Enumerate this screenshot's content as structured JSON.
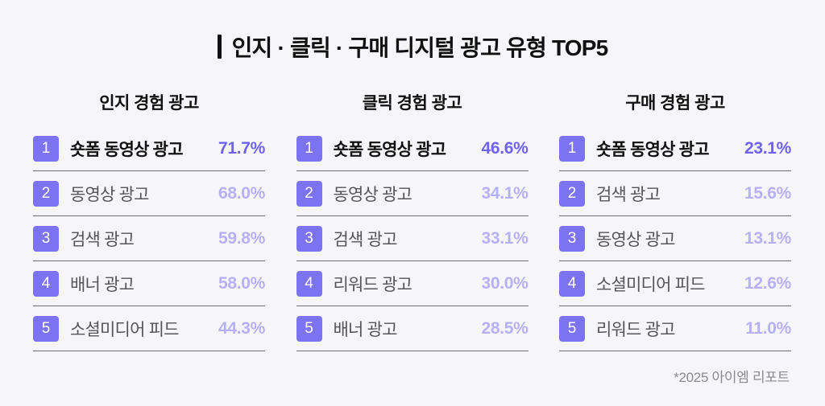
{
  "title": {
    "text": "인지 · 클릭 · 구매 디지털 광고 유형 TOP5"
  },
  "footer": {
    "source": "*2025 아이엠 리포트"
  },
  "colors": {
    "background": "#F6F6F8",
    "badge": "#7C73F2",
    "value_rank1": "#6F62EF",
    "value_other": "#B6B0F6",
    "label_rank1": "#111111",
    "label_other": "#555558",
    "divider": "#6E6E72",
    "source_text": "#8A8A8E"
  },
  "chart_data": {
    "type": "table",
    "title": "인지 · 클릭 · 구매 디지털 광고 유형 TOP5",
    "unit": "%",
    "groups": [
      {
        "header": "인지 경험 광고",
        "items": [
          {
            "rank": "1",
            "label": "숏폼 동영상 광고",
            "value": 71.7,
            "value_label": "71.7%"
          },
          {
            "rank": "2",
            "label": "동영상 광고",
            "value": 68.0,
            "value_label": "68.0%"
          },
          {
            "rank": "3",
            "label": "검색 광고",
            "value": 59.8,
            "value_label": "59.8%"
          },
          {
            "rank": "4",
            "label": "배너 광고",
            "value": 58.0,
            "value_label": "58.0%"
          },
          {
            "rank": "5",
            "label": "소셜미디어 피드",
            "value": 44.3,
            "value_label": "44.3%"
          }
        ]
      },
      {
        "header": "클릭 경험 광고",
        "items": [
          {
            "rank": "1",
            "label": "숏폼 동영상 광고",
            "value": 46.6,
            "value_label": "46.6%"
          },
          {
            "rank": "2",
            "label": "동영상 광고",
            "value": 34.1,
            "value_label": "34.1%"
          },
          {
            "rank": "3",
            "label": "검색 광고",
            "value": 33.1,
            "value_label": "33.1%"
          },
          {
            "rank": "4",
            "label": "리워드 광고",
            "value": 30.0,
            "value_label": "30.0%"
          },
          {
            "rank": "5",
            "label": "배너 광고",
            "value": 28.5,
            "value_label": "28.5%"
          }
        ]
      },
      {
        "header": "구매 경험 광고",
        "items": [
          {
            "rank": "1",
            "label": "숏폼 동영상 광고",
            "value": 23.1,
            "value_label": "23.1%"
          },
          {
            "rank": "2",
            "label": "검색 광고",
            "value": 15.6,
            "value_label": "15.6%"
          },
          {
            "rank": "3",
            "label": "동영상 광고",
            "value": 13.1,
            "value_label": "13.1%"
          },
          {
            "rank": "4",
            "label": "소셜미디어 피드",
            "value": 12.6,
            "value_label": "12.6%"
          },
          {
            "rank": "5",
            "label": "리워드 광고",
            "value": 11.0,
            "value_label": "11.0%"
          }
        ]
      }
    ]
  }
}
